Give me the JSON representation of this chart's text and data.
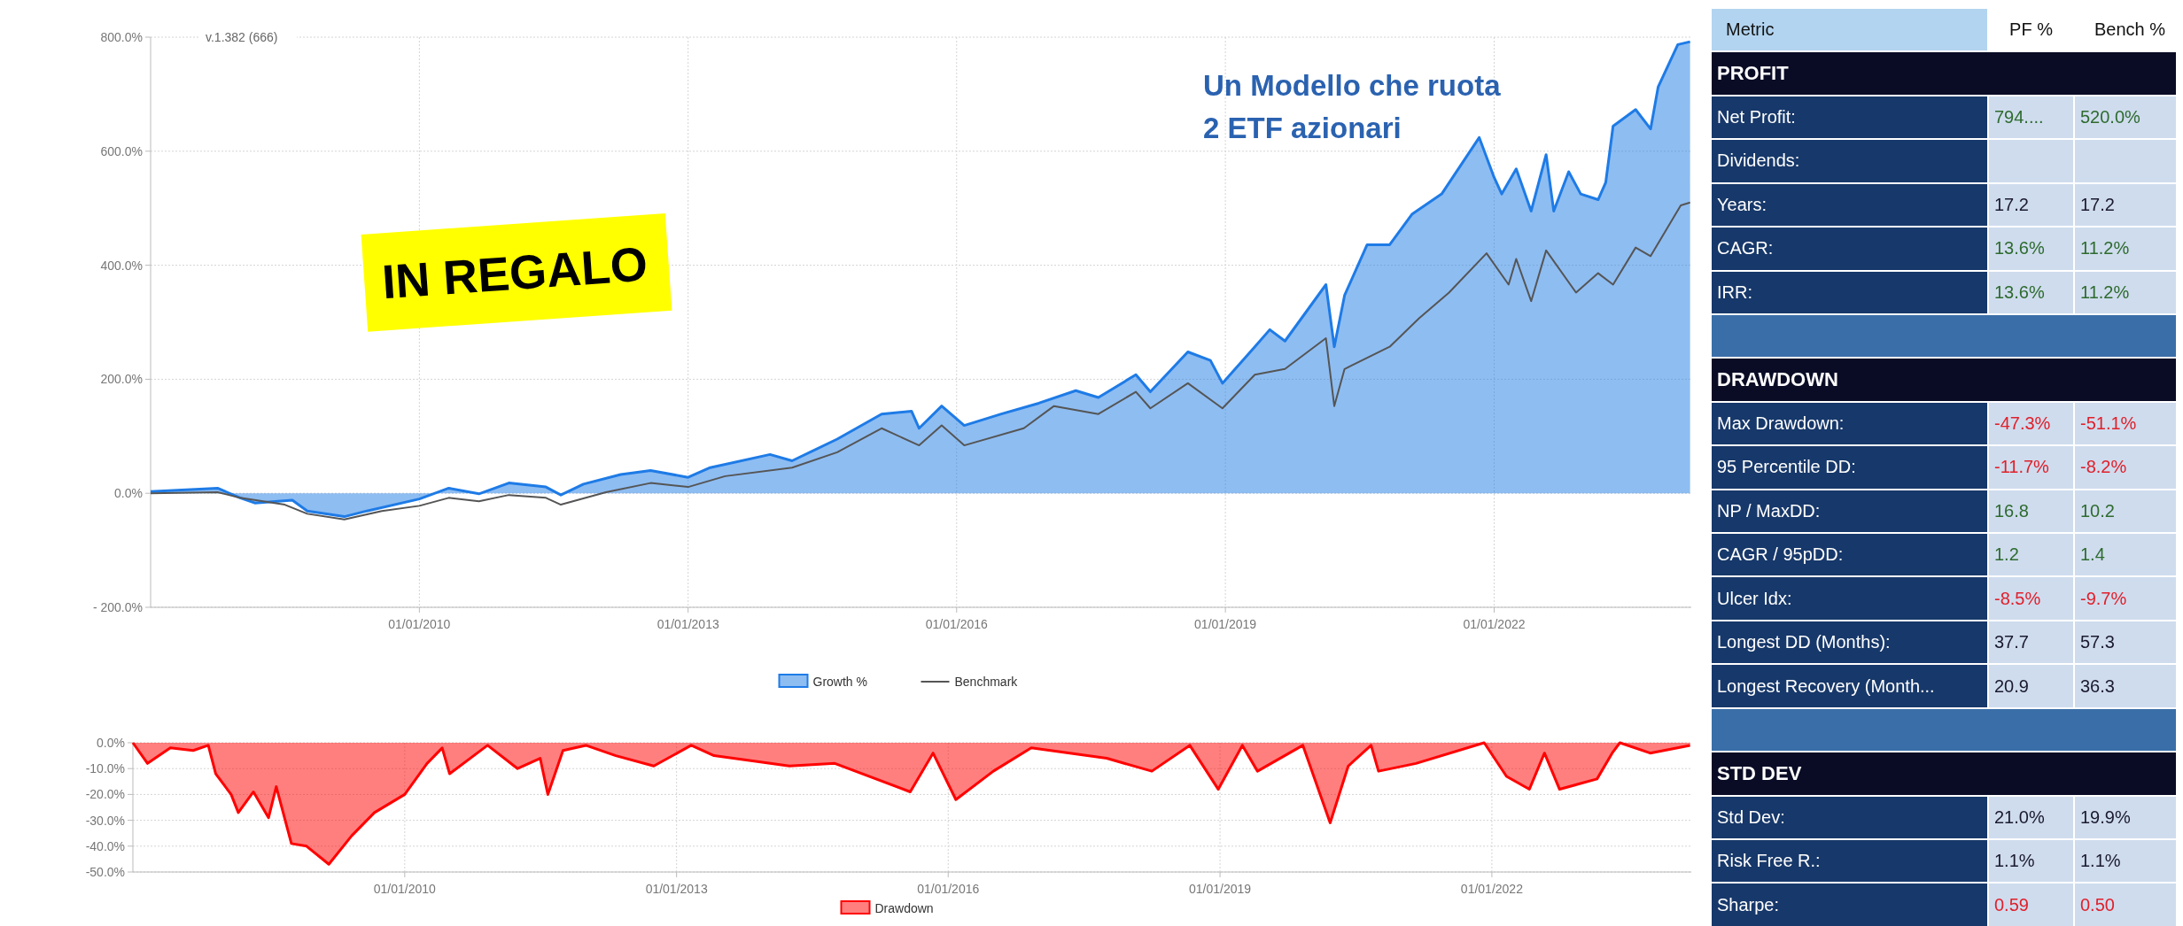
{
  "chart_data": [
    {
      "type": "area",
      "xlim": [
        "2007-01-01",
        "2024-03-15"
      ],
      "ylim": [
        -200,
        800
      ],
      "xticks": [
        {
          "value": "2010-01-01",
          "label": "01/01/2010"
        },
        {
          "value": "2013-01-01",
          "label": "01/01/2013"
        },
        {
          "value": "2016-01-01",
          "label": "01/01/2016"
        },
        {
          "value": "2019-01-01",
          "label": "01/01/2019"
        },
        {
          "value": "2022-01-01",
          "label": "01/01/2022"
        }
      ],
      "yticks": [
        {
          "value": 800,
          "label": "800.0%"
        },
        {
          "value": 600,
          "label": "600.0%"
        },
        {
          "value": 400,
          "label": "400.0%"
        },
        {
          "value": 200,
          "label": "200.0%"
        },
        {
          "value": 0,
          "label": "0.0%"
        },
        {
          "value": -200,
          "label": "-  200.0%"
        }
      ],
      "grid": true,
      "legend": "bottom",
      "annotations": [
        "v.1.382 (666)",
        "IN REGALO",
        "Un Modello che ruota\n2 ETF azionari"
      ],
      "series": [
        {
          "name": "Growth %",
          "type": "area",
          "color": "#1e7be6",
          "x": [
            "2007-01",
            "2007-10",
            "2008-01",
            "2008-03",
            "2008-08",
            "2008-10",
            "2009-03",
            "2009-06",
            "2010-01",
            "2010-05",
            "2010-09",
            "2011-01",
            "2011-06",
            "2011-08",
            "2011-11",
            "2012-04",
            "2012-08",
            "2013-01",
            "2013-04",
            "2013-12",
            "2014-03",
            "2014-09",
            "2015-03",
            "2015-07",
            "2015-08",
            "2015-11",
            "2016-02",
            "2016-07",
            "2016-12",
            "2017-05",
            "2017-08",
            "2018-01",
            "2018-03",
            "2018-08",
            "2018-11",
            "2018-12-20",
            "2019-05",
            "2019-07",
            "2019-09",
            "2020-02-15",
            "2020-03-20",
            "2020-05",
            "2020-08",
            "2020-11",
            "2021-02",
            "2021-06",
            "2021-11",
            "2022-01",
            "2022-02",
            "2022-04",
            "2022-06",
            "2022-08",
            "2022-09",
            "2022-11",
            "2022-12-20",
            "2023-03",
            "2023-04",
            "2023-05",
            "2023-08",
            "2023-10",
            "2023-11",
            "2024-01-20",
            "2024-03-10"
          ],
          "values": [
            3,
            9,
            -8,
            -17,
            -12,
            -31,
            -41,
            -31,
            -10,
            9,
            -1,
            18,
            11,
            -3,
            16,
            33,
            40,
            28,
            45,
            68,
            57,
            95,
            139,
            144,
            114,
            153,
            119,
            139,
            158,
            180,
            168,
            208,
            178,
            248,
            233,
            193,
            257,
            287,
            267,
            366,
            257,
            347,
            436,
            436,
            490,
            525,
            624,
            554,
            525,
            569,
            495,
            594,
            495,
            564,
            525,
            515,
            545,
            644,
            673,
            639,
            713,
            787,
            792
          ]
        },
        {
          "name": "Benchmark",
          "type": "line",
          "color": "#555555",
          "x": [
            "2007-01",
            "2007-10",
            "2008-01",
            "2008-07",
            "2008-10",
            "2009-03",
            "2009-08",
            "2010-01",
            "2010-05",
            "2010-09",
            "2011-01",
            "2011-06",
            "2011-08",
            "2012-02",
            "2012-08",
            "2013-01",
            "2013-06",
            "2014-03",
            "2014-09",
            "2015-03",
            "2015-08",
            "2015-11",
            "2016-02",
            "2016-10",
            "2017-02",
            "2017-08",
            "2018-01",
            "2018-03",
            "2018-08",
            "2018-12-20",
            "2019-05",
            "2019-09",
            "2020-02-15",
            "2020-03-20",
            "2020-05",
            "2020-11",
            "2021-03",
            "2021-07",
            "2021-12",
            "2022-03",
            "2022-04",
            "2022-06",
            "2022-08",
            "2022-12",
            "2023-03",
            "2023-05",
            "2023-08",
            "2023-10",
            "2024-02",
            "2024-03-10"
          ],
          "values": [
            0,
            2,
            -8,
            -20,
            -36,
            -46,
            -31,
            -22,
            -8,
            -14,
            -3,
            -8,
            -20,
            2,
            18,
            11,
            30,
            45,
            72,
            114,
            84,
            119,
            84,
            114,
            153,
            139,
            178,
            149,
            193,
            149,
            208,
            218,
            272,
            153,
            218,
            257,
            307,
            352,
            421,
            366,
            411,
            337,
            426,
            352,
            386,
            366,
            431,
            416,
            505,
            510
          ]
        }
      ]
    },
    {
      "type": "area",
      "xlim": [
        "2007-01-01",
        "2024-03-15"
      ],
      "ylim": [
        -50,
        0
      ],
      "xticks": [
        {
          "value": "2010-01-01",
          "label": "01/01/2010"
        },
        {
          "value": "2013-01-01",
          "label": "01/01/2013"
        },
        {
          "value": "2016-01-01",
          "label": "01/01/2016"
        },
        {
          "value": "2019-01-01",
          "label": "01/01/2019"
        },
        {
          "value": "2022-01-01",
          "label": "01/01/2022"
        }
      ],
      "yticks": [
        {
          "value": 0,
          "label": "0.0%"
        },
        {
          "value": -10,
          "label": "-10.0%"
        },
        {
          "value": -20,
          "label": "-20.0%"
        },
        {
          "value": -30,
          "label": "-30.0%"
        },
        {
          "value": -40,
          "label": "-40.0%"
        },
        {
          "value": -50,
          "label": "-50.0%"
        }
      ],
      "grid": true,
      "legend": "bottom",
      "series": [
        {
          "name": "Drawdown",
          "color": "#ff0000",
          "x": [
            "2007-01",
            "2007-03",
            "2007-06",
            "2007-09",
            "2007-11",
            "2007-12",
            "2008-02",
            "2008-03",
            "2008-05",
            "2008-07",
            "2008-08",
            "2008-10",
            "2008-12",
            "2009-03",
            "2009-06",
            "2009-09",
            "2010-01",
            "2010-04",
            "2010-06",
            "2010-07",
            "2010-12",
            "2011-04",
            "2011-07",
            "2011-08",
            "2011-10",
            "2012-01",
            "2012-05",
            "2012-10",
            "2013-03",
            "2013-06",
            "2014-04",
            "2014-10",
            "2015-08",
            "2015-11",
            "2016-02",
            "2016-07",
            "2016-12",
            "2017-10",
            "2018-04",
            "2018-09",
            "2018-12-25",
            "2019-04",
            "2019-06",
            "2019-12",
            "2020-03-20",
            "2020-06",
            "2020-09",
            "2020-10",
            "2021-03",
            "2021-12",
            "2022-03",
            "2022-06",
            "2022-08",
            "2022-10",
            "2023-03",
            "2023-05",
            "2023-06",
            "2023-10",
            "2024-03-10"
          ],
          "values": [
            0,
            -8,
            -2,
            -3,
            -1,
            -12,
            -20,
            -27,
            -19,
            -29,
            -17,
            -39,
            -40,
            -47,
            -36,
            -27,
            -20,
            -8,
            -2,
            -12,
            -1,
            -10,
            -6,
            -20,
            -3,
            -1,
            -5,
            -9,
            -1,
            -5,
            -9,
            -8,
            -19,
            -4,
            -22,
            -11,
            -2,
            -6,
            -11,
            -1,
            -18,
            -1,
            -11,
            -1,
            -31,
            -9,
            -1,
            -11,
            -8,
            0,
            -13,
            -18,
            -4,
            -18,
            -14,
            -4,
            0,
            -4,
            -1
          ]
        }
      ]
    },
    {
      "type": "other",
      "categories": [
        "Metric",
        "PF %",
        "Bench %"
      ],
      "y_categories": [
        "PROFIT",
        "Net Profit:",
        "Dividends:",
        "Years:",
        "CAGR:",
        "IRR:",
        null,
        "DRAWDOWN",
        "Max Drawdown:",
        "95 Percentile DD:",
        "NP / MaxDD:",
        "CAGR / 95pDD:",
        "Ulcer Idx:",
        "Longest DD (Months):",
        "Longest Recovery (Month...",
        null,
        "STD DEV",
        "Std Dev:",
        "Risk Free R.:",
        "Sharpe:"
      ],
      "cell_labels": [
        null,
        [
          "794....",
          "520.0%"
        ],
        [
          null,
          null
        ],
        [
          "17.2",
          "17.2"
        ],
        [
          "13.6%",
          "11.2%"
        ],
        [
          "13.6%",
          "11.2%"
        ],
        null,
        null,
        [
          "-47.3%",
          "-51.1%"
        ],
        [
          "-11.7%",
          "-8.2%"
        ],
        [
          "16.8",
          "10.2"
        ],
        [
          "1.2",
          "1.4"
        ],
        [
          "-8.5%",
          "-9.7%"
        ],
        [
          "37.7",
          "57.3"
        ],
        [
          "20.9",
          "36.3"
        ],
        null,
        null,
        [
          "21.0%",
          "19.9%"
        ],
        [
          "1.1%",
          "1.1%"
        ],
        [
          "0.59",
          "0.50"
        ]
      ],
      "colors": [
        null,
        [
          "#2e6b2e",
          "#2e6b2e"
        ],
        [
          null,
          null
        ],
        [
          "#1a1a2e",
          "#1a1a2e"
        ],
        [
          "#2e6b2e",
          "#2e6b2e"
        ],
        [
          "#2e6b2e",
          "#2e6b2e"
        ],
        null,
        null,
        [
          "#e0202a",
          "#e0202a"
        ],
        [
          "#e0202a",
          "#e0202a"
        ],
        [
          "#2e6b2e",
          "#2e6b2e"
        ],
        [
          "#2e6b2e",
          "#2e6b2e"
        ],
        [
          "#e0202a",
          "#e0202a"
        ],
        [
          "#1a1a2e",
          "#1a1a2e"
        ],
        [
          "#1a1a2e",
          "#1a1a2e"
        ],
        null,
        null,
        [
          "#1a1a2e",
          "#1a1a2e"
        ],
        [
          "#1a1a2e",
          "#1a1a2e"
        ],
        [
          "#e0202a",
          "#e0202a"
        ]
      ]
    }
  ]
}
